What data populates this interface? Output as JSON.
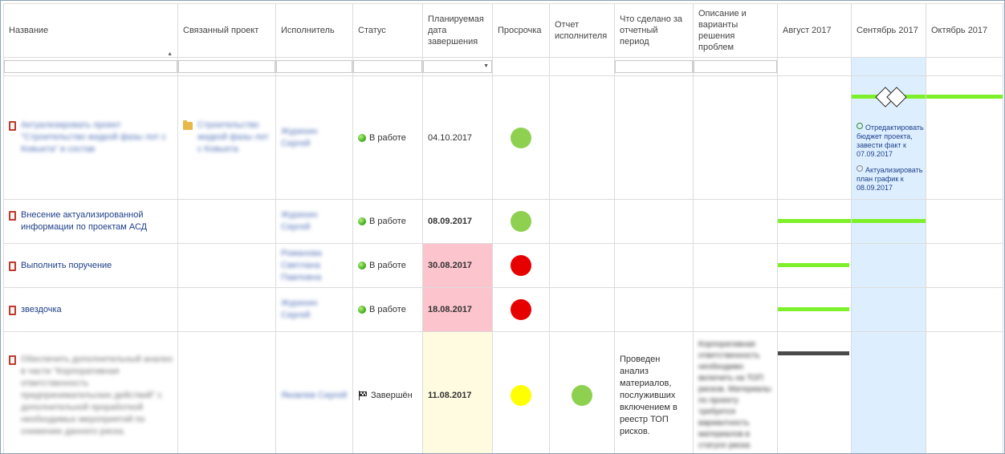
{
  "colors": {
    "green": "#8ed151",
    "red": "#e60000",
    "yellow": "#ffff00",
    "bar_green": "#7ef02a",
    "bar_dark": "#4a4a4a"
  },
  "columns": [
    {
      "key": "name",
      "label": "Название",
      "sort": "asc",
      "filter": "text"
    },
    {
      "key": "project",
      "label": "Связанный проект",
      "filter": "text"
    },
    {
      "key": "assignee",
      "label": "Исполнитель",
      "filter": "text"
    },
    {
      "key": "status",
      "label": "Статус",
      "filter": "text"
    },
    {
      "key": "due",
      "label": "Планируемая дата завершения",
      "filter": "dropdown"
    },
    {
      "key": "overdue",
      "label": "Просрочка",
      "filter": "none"
    },
    {
      "key": "report",
      "label": "Отчет исполнителя",
      "filter": "none"
    },
    {
      "key": "done",
      "label": "Что сделано за отчетный период",
      "filter": "text"
    },
    {
      "key": "problems",
      "label": "Описание и варианты решения проблем",
      "filter": "text"
    },
    {
      "key": "aug",
      "label": "Август 2017",
      "filter": "none"
    },
    {
      "key": "sep",
      "label": "Сентябрь 2017",
      "filter": "none"
    },
    {
      "key": "oct",
      "label": "Октябрь 2017",
      "filter": "none"
    }
  ],
  "rows": [
    {
      "name": "Актуализировать проект \"Строительство жидкой фазы лот с Ковыкта\" в состав",
      "name_blurred": true,
      "project": "Строительство жидкой фазы лот с Ковыкта",
      "assignee": "Журихин Сергей",
      "status": "В работе",
      "status_icon": "green-status-icon",
      "due": "04.10.2017",
      "due_bold": false,
      "overdue_color": "green",
      "report_color": null,
      "done": "",
      "problems": "",
      "milestones": [
        {
          "text": "Отредактировать бюджет проекта, завести факт к 07.09.2017"
        },
        {
          "text": "Актуализировать план график к 08.09.2017"
        }
      ]
    },
    {
      "name": "Внесение актуализированной информации по проектам АСД",
      "name_blurred": false,
      "project": "",
      "assignee": "Журихин Сергей",
      "status": "В работе",
      "status_icon": "green-status-icon",
      "due": "08.09.2017",
      "due_bold": true,
      "overdue_color": "green",
      "report_color": null,
      "done": "",
      "problems": ""
    },
    {
      "name": "Выполнить поручение",
      "name_blurred": false,
      "project": "",
      "assignee": "Романова Светлана Павловна",
      "status": "В работе",
      "status_icon": "green-status-icon",
      "due": "30.08.2017",
      "due_bold": true,
      "overdue_color": "red",
      "report_color": null,
      "done": "",
      "problems": ""
    },
    {
      "name": "звездочка",
      "name_blurred": false,
      "project": "",
      "assignee": "Журихин Сергей",
      "status": "В работе",
      "status_icon": "green-status-icon",
      "due": "18.08.2017",
      "due_bold": true,
      "overdue_color": "red",
      "report_color": null,
      "done": "",
      "problems": ""
    },
    {
      "name": "Обеспечить дополнительный анализ в части \"Корпоративная ответственность предпринимательских действий\" с дополнительной проработкой необходимых мероприятий по снижению данного риска.",
      "name_blurred": true,
      "project": "",
      "assignee": "Яковлев Сергей",
      "status": "Завершён",
      "status_icon": "checkered-flag-icon",
      "due": "11.08.2017",
      "due_bold": true,
      "overdue_color": "yellow",
      "report_color": "green",
      "done": "Проведен анализ материалов, послуживших включением в реестр ТОП рисков.",
      "problems": "Корпоративная ответственность необходимо включить на ТОП рисков. Материалы по проекту требуется вариантность материалов в статусе риска"
    }
  ]
}
